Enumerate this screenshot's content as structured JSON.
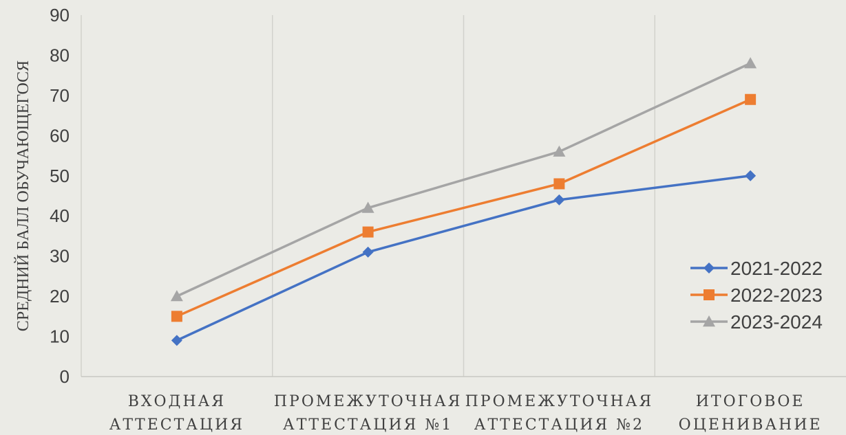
{
  "chart_data": {
    "type": "line",
    "title": "",
    "ylabel": "СРЕДНИЙ БАЛЛ ОБУЧАЮЩЕГОСЯ",
    "xlabel": "",
    "ylim": [
      0,
      90
    ],
    "yticks": [
      0,
      10,
      20,
      30,
      40,
      50,
      60,
      70,
      80,
      90
    ],
    "categories": [
      [
        "ВХОДНАЯ",
        "АТТЕСТАЦИЯ"
      ],
      [
        "ПРОМЕЖУТОЧНАЯ",
        "АТТЕСТАЦИЯ №1"
      ],
      [
        "ПРОМЕЖУТОЧНАЯ",
        "АТТЕСТАЦИЯ №2"
      ],
      [
        "ИТОГОВОЕ",
        "ОЦЕНИВАНИЕ"
      ]
    ],
    "legend_position": "right",
    "grid": "vertical",
    "series": [
      {
        "name": "2021-2022",
        "values": [
          9,
          31,
          44,
          50
        ],
        "color": "#4472c4",
        "marker": "diamond"
      },
      {
        "name": "2022-2023",
        "values": [
          15,
          36,
          48,
          69
        ],
        "color": "#ed7d31",
        "marker": "square"
      },
      {
        "name": "2023-2024",
        "values": [
          20,
          42,
          56,
          78
        ],
        "color": "#a5a5a5",
        "marker": "triangle"
      }
    ]
  }
}
